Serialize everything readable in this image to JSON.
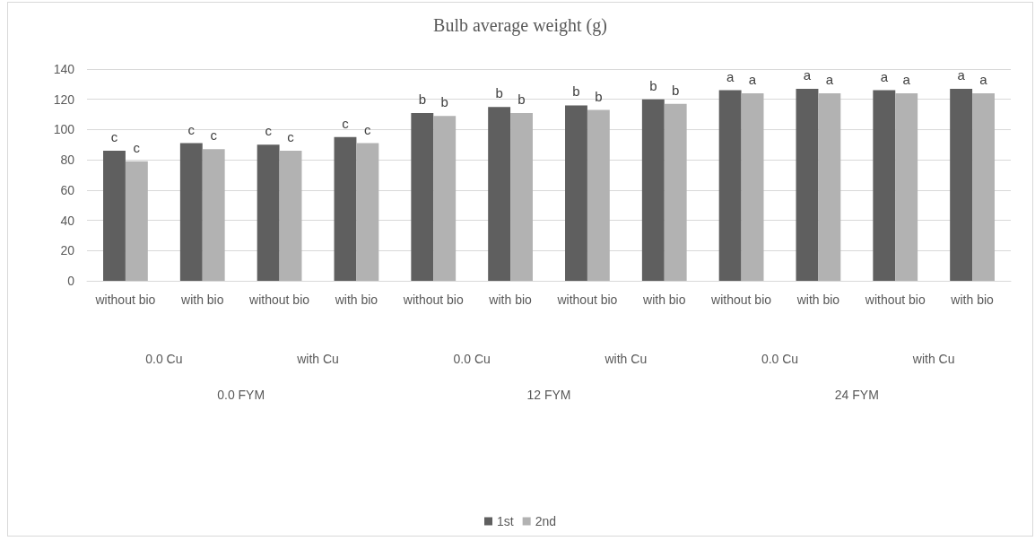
{
  "chart_data": {
    "type": "bar",
    "title": "Bulb average weight (g)",
    "categories": [
      "without bio",
      "with bio",
      "without bio",
      "with bio",
      "without bio",
      "with bio",
      "without bio",
      "with bio",
      "without bio",
      "with bio",
      "without bio",
      "with bio"
    ],
    "annotations": [
      "0.0 Cu",
      "with Cu",
      "0.0 Cu",
      "with Cu",
      "0.0 Cu",
      "with Cu",
      "0.0 FYM",
      "12 FYM",
      "24 FYM"
    ],
    "series": [
      {
        "name": "1st",
        "color": "#5f5f5f",
        "values": [
          86,
          91,
          90,
          95,
          111,
          115,
          116,
          120,
          126,
          127,
          126,
          127
        ],
        "value_labels": [
          "c",
          "c",
          "c",
          "c",
          "b",
          "b",
          "b",
          "b",
          "a",
          "a",
          "a",
          "a"
        ]
      },
      {
        "name": "2nd",
        "color": "#b2b2b2",
        "values": [
          79,
          87,
          86,
          91,
          109,
          111,
          113,
          117,
          124,
          124,
          124,
          124
        ],
        "value_labels": [
          "c",
          "c",
          "c",
          "c",
          "b",
          "b",
          "b",
          "b",
          "a",
          "a",
          "a",
          "a"
        ]
      }
    ],
    "ylim": [
      0,
      140
    ],
    "yticks": [
      0,
      20,
      40,
      60,
      80,
      100,
      120,
      140
    ],
    "grid": "y",
    "legend": "bottom"
  }
}
